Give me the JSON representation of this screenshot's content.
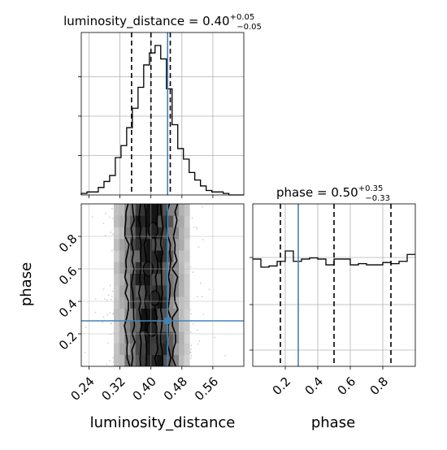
{
  "chart_data": [
    {
      "type": "histogram",
      "panel": "top-left",
      "title": {
        "prefix": "luminosity_distance = 0.40",
        "sup": "+0.05",
        "sub": "−0.05"
      },
      "xlim": [
        0.22,
        0.64
      ],
      "bin_edges": [
        0.22,
        0.2347,
        0.2493,
        0.264,
        0.2787,
        0.2933,
        0.308,
        0.3227,
        0.3373,
        0.352,
        0.3667,
        0.3813,
        0.396,
        0.4107,
        0.4253,
        0.44,
        0.4547,
        0.4693,
        0.484,
        0.4987,
        0.5133,
        0.528,
        0.5427,
        0.5573,
        0.572,
        0.5867,
        0.6013,
        0.616,
        0.6307,
        0.64
      ],
      "bin_heights": [
        0.01,
        0.02,
        0.02,
        0.05,
        0.09,
        0.13,
        0.25,
        0.33,
        0.45,
        0.58,
        0.72,
        0.87,
        0.95,
        1.0,
        0.91,
        0.71,
        0.47,
        0.31,
        0.24,
        0.15,
        0.1,
        0.06,
        0.03,
        0.02,
        0.02,
        0.01,
        0.0,
        0.0,
        0.0
      ],
      "quantiles": [
        0.35,
        0.4,
        0.45
      ],
      "truth": 0.443,
      "grid": true,
      "x_ticks": [
        0.24,
        0.32,
        0.4,
        0.48,
        0.56
      ]
    },
    {
      "type": "histogram",
      "panel": "bottom-right",
      "title": {
        "prefix": "phase = 0.50",
        "sup": "+0.35",
        "sub": "−0.33"
      },
      "xlim": [
        0.0,
        1.0
      ],
      "bin_edges": [
        0.0,
        0.05,
        0.1,
        0.15,
        0.2,
        0.25,
        0.3,
        0.35,
        0.4,
        0.45,
        0.5,
        0.55,
        0.6,
        0.65,
        0.7,
        0.75,
        0.8,
        0.85,
        0.9,
        0.95,
        1.0
      ],
      "bin_heights": [
        0.93,
        0.86,
        0.87,
        0.91,
        1.0,
        0.91,
        0.93,
        0.94,
        0.93,
        0.88,
        0.93,
        0.93,
        0.88,
        0.89,
        0.88,
        0.88,
        0.9,
        0.89,
        0.91,
        0.97
      ],
      "quantiles": [
        0.17,
        0.5,
        0.85
      ],
      "truth": 0.28,
      "grid": true,
      "x_ticks": [
        0.2,
        0.4,
        0.6,
        0.8
      ],
      "x_tick_labels": [
        "0.2",
        "0.4",
        "0.6",
        "0.8"
      ],
      "xlabel": "phase"
    },
    {
      "type": "2d-density",
      "panel": "bottom-left",
      "xlim": [
        0.22,
        0.64
      ],
      "ylim": [
        0.0,
        1.0
      ],
      "x_ticks": [
        0.24,
        0.32,
        0.4,
        0.48,
        0.56
      ],
      "x_tick_labels": [
        "0.24",
        "0.32",
        "0.40",
        "0.48",
        "0.56"
      ],
      "y_ticks": [
        0.2,
        0.4,
        0.6,
        0.8
      ],
      "y_tick_labels": [
        "0.2",
        "0.4",
        "0.6",
        "0.8"
      ],
      "xlabel": "luminosity_distance",
      "ylabel": "phase",
      "x_center": 0.4,
      "x_sigma": 0.048,
      "truth": {
        "x": 0.443,
        "y": 0.28
      },
      "grid": true
    }
  ],
  "colors": {
    "truth": "#4682b4",
    "line": "#000000",
    "grid": "#b0b0b0",
    "axes_edge": "#000000"
  }
}
